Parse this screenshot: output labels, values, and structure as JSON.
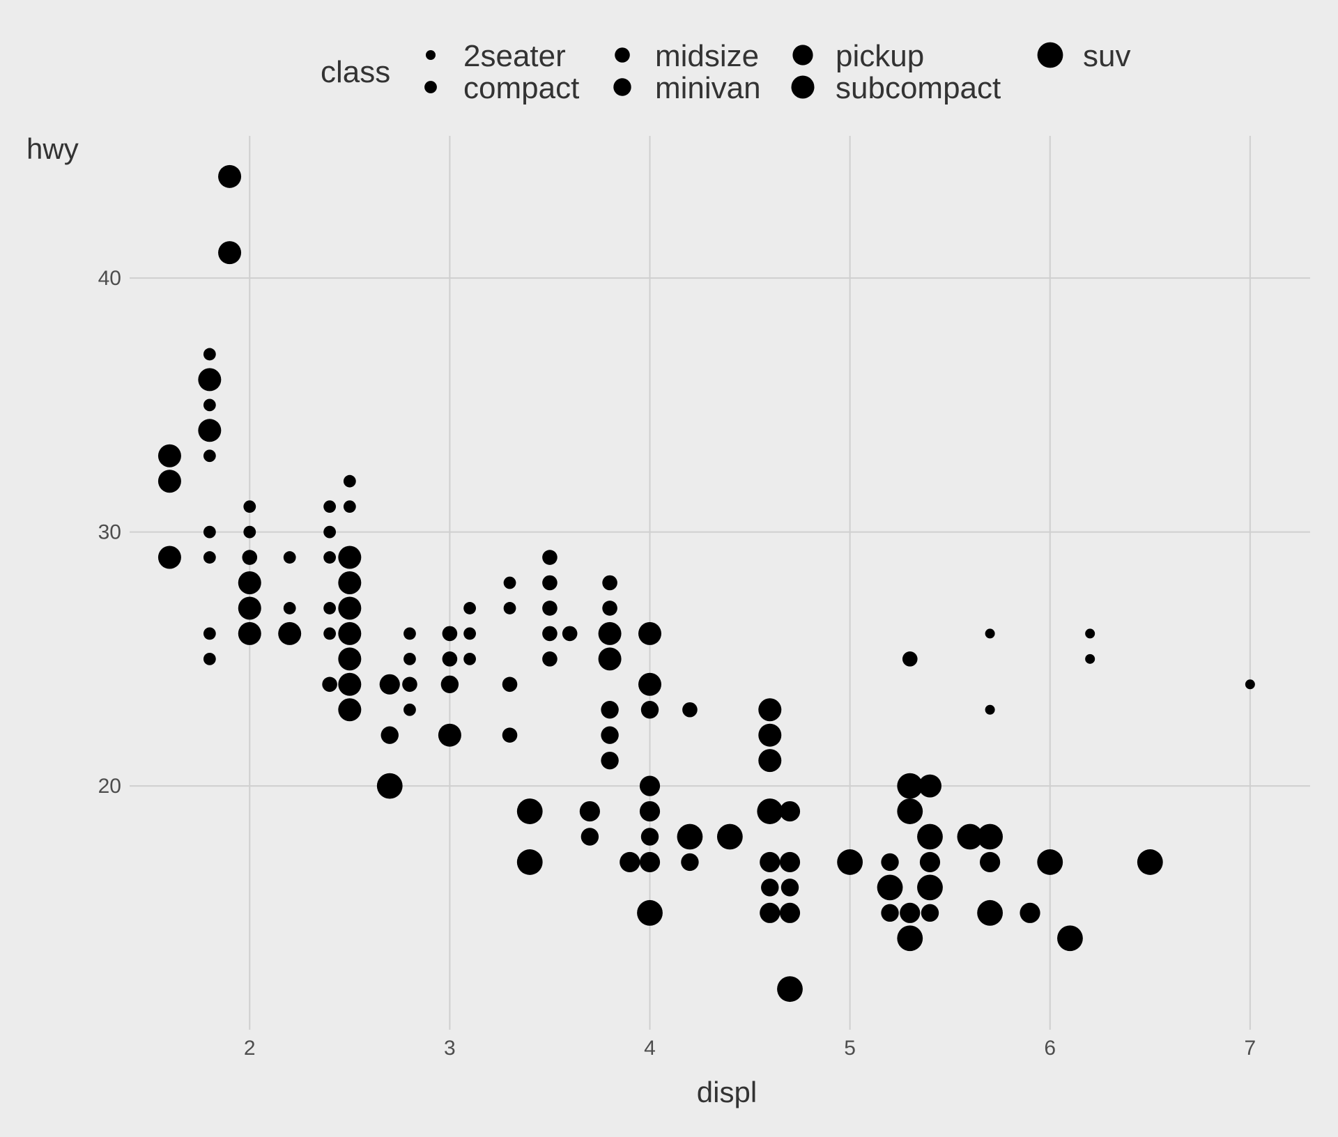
{
  "chart_data": {
    "type": "scatter",
    "xlabel": "displ",
    "ylabel": "hwy",
    "xlim": [
      1.4,
      7.3
    ],
    "ylim": [
      10.4,
      45.6
    ],
    "xticks": [
      2,
      3,
      4,
      5,
      6,
      7
    ],
    "yticks": [
      20,
      30,
      40
    ],
    "grid": true,
    "legend": {
      "title": "class",
      "placement": "top",
      "entries": [
        "2seater",
        "compact",
        "midsize",
        "minivan",
        "pickup",
        "subcompact",
        "suv"
      ]
    },
    "size_by_class": {
      "2seater": 1,
      "compact": 2,
      "midsize": 3,
      "minivan": 4,
      "pickup": 5,
      "subcompact": 6,
      "suv": 7
    },
    "colors": {
      "background": "#ececec",
      "grid": "#cfcfcf",
      "points": "#000000"
    },
    "points": [
      {
        "x": 5.7,
        "y": 26,
        "class": "2seater"
      },
      {
        "x": 5.7,
        "y": 23,
        "class": "2seater"
      },
      {
        "x": 6.2,
        "y": 26,
        "class": "2seater"
      },
      {
        "x": 6.2,
        "y": 25,
        "class": "2seater"
      },
      {
        "x": 7.0,
        "y": 24,
        "class": "2seater"
      },
      {
        "x": 1.8,
        "y": 37,
        "class": "compact"
      },
      {
        "x": 1.8,
        "y": 35,
        "class": "compact"
      },
      {
        "x": 1.8,
        "y": 33,
        "class": "compact"
      },
      {
        "x": 1.8,
        "y": 30,
        "class": "compact"
      },
      {
        "x": 1.8,
        "y": 29,
        "class": "compact"
      },
      {
        "x": 1.8,
        "y": 26,
        "class": "compact"
      },
      {
        "x": 1.8,
        "y": 25,
        "class": "compact"
      },
      {
        "x": 2.0,
        "y": 31,
        "class": "compact"
      },
      {
        "x": 2.0,
        "y": 30,
        "class": "compact"
      },
      {
        "x": 2.2,
        "y": 29,
        "class": "compact"
      },
      {
        "x": 2.2,
        "y": 27,
        "class": "compact"
      },
      {
        "x": 2.4,
        "y": 31,
        "class": "compact"
      },
      {
        "x": 2.4,
        "y": 30,
        "class": "compact"
      },
      {
        "x": 2.4,
        "y": 29,
        "class": "compact"
      },
      {
        "x": 2.4,
        "y": 27,
        "class": "compact"
      },
      {
        "x": 2.4,
        "y": 26,
        "class": "compact"
      },
      {
        "x": 2.5,
        "y": 32,
        "class": "compact"
      },
      {
        "x": 2.5,
        "y": 31,
        "class": "compact"
      },
      {
        "x": 2.8,
        "y": 26,
        "class": "compact"
      },
      {
        "x": 2.8,
        "y": 25,
        "class": "compact"
      },
      {
        "x": 2.8,
        "y": 24,
        "class": "compact"
      },
      {
        "x": 2.8,
        "y": 23,
        "class": "compact"
      },
      {
        "x": 3.1,
        "y": 27,
        "class": "compact"
      },
      {
        "x": 3.1,
        "y": 26,
        "class": "compact"
      },
      {
        "x": 3.1,
        "y": 25,
        "class": "compact"
      },
      {
        "x": 3.3,
        "y": 28,
        "class": "compact"
      },
      {
        "x": 3.3,
        "y": 27,
        "class": "compact"
      },
      {
        "x": 3.5,
        "y": 29,
        "class": "midsize"
      },
      {
        "x": 3.5,
        "y": 28,
        "class": "midsize"
      },
      {
        "x": 3.5,
        "y": 27,
        "class": "midsize"
      },
      {
        "x": 3.5,
        "y": 26,
        "class": "midsize"
      },
      {
        "x": 3.5,
        "y": 25,
        "class": "midsize"
      },
      {
        "x": 3.6,
        "y": 26,
        "class": "midsize"
      },
      {
        "x": 3.8,
        "y": 28,
        "class": "midsize"
      },
      {
        "x": 3.8,
        "y": 27,
        "class": "midsize"
      },
      {
        "x": 3.0,
        "y": 26,
        "class": "midsize"
      },
      {
        "x": 3.0,
        "y": 25,
        "class": "midsize"
      },
      {
        "x": 2.4,
        "y": 24,
        "class": "midsize"
      },
      {
        "x": 2.8,
        "y": 24,
        "class": "midsize"
      },
      {
        "x": 3.3,
        "y": 24,
        "class": "midsize"
      },
      {
        "x": 3.3,
        "y": 22,
        "class": "midsize"
      },
      {
        "x": 4.2,
        "y": 23,
        "class": "midsize"
      },
      {
        "x": 5.3,
        "y": 25,
        "class": "midsize"
      },
      {
        "x": 2.0,
        "y": 29,
        "class": "midsize"
      },
      {
        "x": 3.8,
        "y": 23,
        "class": "minivan"
      },
      {
        "x": 3.8,
        "y": 22,
        "class": "minivan"
      },
      {
        "x": 3.8,
        "y": 21,
        "class": "minivan"
      },
      {
        "x": 4.0,
        "y": 23,
        "class": "minivan"
      },
      {
        "x": 3.0,
        "y": 24,
        "class": "minivan"
      },
      {
        "x": 3.7,
        "y": 18,
        "class": "minivan"
      },
      {
        "x": 4.0,
        "y": 18,
        "class": "minivan"
      },
      {
        "x": 4.2,
        "y": 17,
        "class": "minivan"
      },
      {
        "x": 4.6,
        "y": 16,
        "class": "minivan"
      },
      {
        "x": 4.7,
        "y": 16,
        "class": "minivan"
      },
      {
        "x": 5.2,
        "y": 17,
        "class": "minivan"
      },
      {
        "x": 5.2,
        "y": 15,
        "class": "minivan"
      },
      {
        "x": 5.4,
        "y": 15,
        "class": "minivan"
      },
      {
        "x": 2.7,
        "y": 22,
        "class": "minivan"
      },
      {
        "x": 3.7,
        "y": 19,
        "class": "pickup"
      },
      {
        "x": 3.9,
        "y": 17,
        "class": "pickup"
      },
      {
        "x": 4.7,
        "y": 17,
        "class": "pickup"
      },
      {
        "x": 4.7,
        "y": 15,
        "class": "pickup"
      },
      {
        "x": 4.7,
        "y": 19,
        "class": "pickup"
      },
      {
        "x": 5.2,
        "y": 16,
        "class": "pickup"
      },
      {
        "x": 5.7,
        "y": 17,
        "class": "pickup"
      },
      {
        "x": 5.9,
        "y": 15,
        "class": "pickup"
      },
      {
        "x": 4.0,
        "y": 20,
        "class": "pickup"
      },
      {
        "x": 4.0,
        "y": 19,
        "class": "pickup"
      },
      {
        "x": 4.6,
        "y": 17,
        "class": "pickup"
      },
      {
        "x": 5.4,
        "y": 17,
        "class": "pickup"
      },
      {
        "x": 2.7,
        "y": 24,
        "class": "pickup"
      },
      {
        "x": 4.0,
        "y": 17,
        "class": "pickup"
      },
      {
        "x": 3.4,
        "y": 17,
        "class": "pickup"
      },
      {
        "x": 4.6,
        "y": 15,
        "class": "pickup"
      },
      {
        "x": 5.3,
        "y": 15,
        "class": "pickup"
      },
      {
        "x": 1.6,
        "y": 33,
        "class": "subcompact"
      },
      {
        "x": 1.6,
        "y": 32,
        "class": "subcompact"
      },
      {
        "x": 1.6,
        "y": 29,
        "class": "subcompact"
      },
      {
        "x": 1.8,
        "y": 36,
        "class": "subcompact"
      },
      {
        "x": 1.8,
        "y": 34,
        "class": "subcompact"
      },
      {
        "x": 1.9,
        "y": 44,
        "class": "subcompact"
      },
      {
        "x": 1.9,
        "y": 41,
        "class": "subcompact"
      },
      {
        "x": 2.0,
        "y": 28,
        "class": "subcompact"
      },
      {
        "x": 2.0,
        "y": 27,
        "class": "subcompact"
      },
      {
        "x": 2.0,
        "y": 26,
        "class": "subcompact"
      },
      {
        "x": 2.2,
        "y": 26,
        "class": "subcompact"
      },
      {
        "x": 2.5,
        "y": 29,
        "class": "subcompact"
      },
      {
        "x": 2.5,
        "y": 28,
        "class": "subcompact"
      },
      {
        "x": 2.5,
        "y": 27,
        "class": "subcompact"
      },
      {
        "x": 2.5,
        "y": 26,
        "class": "subcompact"
      },
      {
        "x": 2.5,
        "y": 25,
        "class": "subcompact"
      },
      {
        "x": 2.5,
        "y": 24,
        "class": "subcompact"
      },
      {
        "x": 2.5,
        "y": 23,
        "class": "subcompact"
      },
      {
        "x": 3.0,
        "y": 22,
        "class": "subcompact"
      },
      {
        "x": 3.8,
        "y": 26,
        "class": "subcompact"
      },
      {
        "x": 3.8,
        "y": 25,
        "class": "subcompact"
      },
      {
        "x": 4.0,
        "y": 26,
        "class": "subcompact"
      },
      {
        "x": 4.0,
        "y": 24,
        "class": "subcompact"
      },
      {
        "x": 4.6,
        "y": 23,
        "class": "subcompact"
      },
      {
        "x": 4.6,
        "y": 22,
        "class": "subcompact"
      },
      {
        "x": 4.6,
        "y": 21,
        "class": "subcompact"
      },
      {
        "x": 5.4,
        "y": 20,
        "class": "subcompact"
      },
      {
        "x": 2.7,
        "y": 20,
        "class": "suv"
      },
      {
        "x": 3.4,
        "y": 19,
        "class": "suv"
      },
      {
        "x": 3.4,
        "y": 17,
        "class": "suv"
      },
      {
        "x": 4.0,
        "y": 15,
        "class": "suv"
      },
      {
        "x": 4.2,
        "y": 18,
        "class": "suv"
      },
      {
        "x": 4.4,
        "y": 18,
        "class": "suv"
      },
      {
        "x": 4.6,
        "y": 19,
        "class": "suv"
      },
      {
        "x": 4.7,
        "y": 12,
        "class": "suv"
      },
      {
        "x": 5.0,
        "y": 17,
        "class": "suv"
      },
      {
        "x": 5.2,
        "y": 16,
        "class": "suv"
      },
      {
        "x": 5.3,
        "y": 20,
        "class": "suv"
      },
      {
        "x": 5.3,
        "y": 19,
        "class": "suv"
      },
      {
        "x": 5.3,
        "y": 14,
        "class": "suv"
      },
      {
        "x": 5.4,
        "y": 18,
        "class": "suv"
      },
      {
        "x": 5.4,
        "y": 16,
        "class": "suv"
      },
      {
        "x": 5.6,
        "y": 18,
        "class": "suv"
      },
      {
        "x": 5.7,
        "y": 18,
        "class": "suv"
      },
      {
        "x": 5.7,
        "y": 15,
        "class": "suv"
      },
      {
        "x": 6.0,
        "y": 17,
        "class": "suv"
      },
      {
        "x": 6.1,
        "y": 14,
        "class": "suv"
      },
      {
        "x": 6.5,
        "y": 17,
        "class": "suv"
      }
    ]
  }
}
